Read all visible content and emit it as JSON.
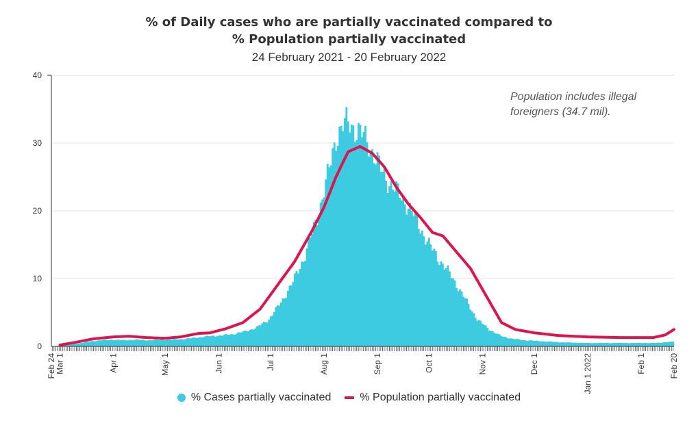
{
  "chart_data": {
    "type": "bar+line",
    "title_line1": "% of Daily cases who are partially vaccinated compared to",
    "title_line2": "% Population partially vaccinated",
    "subtitle": "24 February 2021 - 20 February 2022",
    "annotation": "Population includes illegal foreigners (34.7 mil).",
    "x_start": "2021-02-24",
    "x_end": "2022-02-20",
    "ylim": [
      0,
      40
    ],
    "yticks": [
      "0",
      "10",
      "20",
      "30",
      "40"
    ],
    "xticks": [
      {
        "date": "2021-02-24",
        "label": "Feb 24"
      },
      {
        "date": "2021-03-01",
        "label": "Mar 1"
      },
      {
        "date": "2021-04-01",
        "label": "Apr 1"
      },
      {
        "date": "2021-05-01",
        "label": "May 1"
      },
      {
        "date": "2021-06-01",
        "label": "Jun 1"
      },
      {
        "date": "2021-07-01",
        "label": "Jul 1"
      },
      {
        "date": "2021-08-01",
        "label": "Aug 1"
      },
      {
        "date": "2021-09-01",
        "label": "Sep 1"
      },
      {
        "date": "2021-10-01",
        "label": "Oct 1"
      },
      {
        "date": "2021-11-01",
        "label": "Nov 1"
      },
      {
        "date": "2021-12-01",
        "label": "Dec 1"
      },
      {
        "date": "2022-01-01",
        "label": "Jan 1 2022"
      },
      {
        "date": "2022-02-01",
        "label": "Feb 1"
      },
      {
        "date": "2022-02-20",
        "label": "Feb 20"
      }
    ],
    "grid": "horizontal",
    "legend_position": "bottom",
    "series": [
      {
        "name": "% Cases partially vaccinated",
        "kind": "bar",
        "color": "#3ccbe0",
        "points": [
          [
            "2021-02-24",
            0.0
          ],
          [
            "2021-03-03",
            0.2
          ],
          [
            "2021-03-10",
            0.4
          ],
          [
            "2021-03-17",
            0.7
          ],
          [
            "2021-03-24",
            0.9
          ],
          [
            "2021-03-31",
            1.0
          ],
          [
            "2021-04-07",
            0.9
          ],
          [
            "2021-04-14",
            1.0
          ],
          [
            "2021-04-21",
            0.9
          ],
          [
            "2021-04-28",
            1.0
          ],
          [
            "2021-05-05",
            1.0
          ],
          [
            "2021-05-12",
            1.1
          ],
          [
            "2021-05-19",
            1.3
          ],
          [
            "2021-05-26",
            1.5
          ],
          [
            "2021-06-02",
            1.6
          ],
          [
            "2021-06-09",
            1.8
          ],
          [
            "2021-06-16",
            2.2
          ],
          [
            "2021-06-23",
            2.8
          ],
          [
            "2021-06-30",
            4.0
          ],
          [
            "2021-07-07",
            6.5
          ],
          [
            "2021-07-14",
            9.5
          ],
          [
            "2021-07-21",
            13.5
          ],
          [
            "2021-07-28",
            19.0
          ],
          [
            "2021-08-04",
            26.0
          ],
          [
            "2021-08-08",
            31.0
          ],
          [
            "2021-08-12",
            32.5
          ],
          [
            "2021-08-16",
            33.0
          ],
          [
            "2021-08-20",
            32.0
          ],
          [
            "2021-08-27",
            30.0
          ],
          [
            "2021-09-03",
            26.0
          ],
          [
            "2021-09-10",
            23.5
          ],
          [
            "2021-09-17",
            21.5
          ],
          [
            "2021-09-24",
            18.5
          ],
          [
            "2021-10-01",
            15.0
          ],
          [
            "2021-10-08",
            12.5
          ],
          [
            "2021-10-15",
            10.0
          ],
          [
            "2021-10-22",
            7.0
          ],
          [
            "2021-10-29",
            4.0
          ],
          [
            "2021-11-05",
            2.5
          ],
          [
            "2021-11-12",
            1.5
          ],
          [
            "2021-11-19",
            1.1
          ],
          [
            "2021-11-26",
            0.9
          ],
          [
            "2021-12-03",
            0.8
          ],
          [
            "2021-12-17",
            0.6
          ],
          [
            "2022-01-01",
            0.5
          ],
          [
            "2022-01-15",
            0.5
          ],
          [
            "2022-02-01",
            0.5
          ],
          [
            "2022-02-10",
            0.5
          ],
          [
            "2022-02-20",
            0.7
          ]
        ]
      },
      {
        "name": "% Population partially vaccinated",
        "kind": "line",
        "color": "#e0144c",
        "points": [
          [
            "2021-03-01",
            0.2
          ],
          [
            "2021-03-10",
            0.6
          ],
          [
            "2021-03-20",
            1.1
          ],
          [
            "2021-04-01",
            1.4
          ],
          [
            "2021-04-10",
            1.5
          ],
          [
            "2021-04-20",
            1.3
          ],
          [
            "2021-05-01",
            1.2
          ],
          [
            "2021-05-10",
            1.4
          ],
          [
            "2021-05-20",
            1.9
          ],
          [
            "2021-05-27",
            2.0
          ],
          [
            "2021-06-05",
            2.6
          ],
          [
            "2021-06-15",
            3.5
          ],
          [
            "2021-06-25",
            5.5
          ],
          [
            "2021-07-05",
            9.0
          ],
          [
            "2021-07-15",
            12.5
          ],
          [
            "2021-07-25",
            17.0
          ],
          [
            "2021-08-01",
            20.5
          ],
          [
            "2021-08-08",
            25.0
          ],
          [
            "2021-08-15",
            28.7
          ],
          [
            "2021-08-22",
            29.5
          ],
          [
            "2021-08-29",
            28.5
          ],
          [
            "2021-09-05",
            26.5
          ],
          [
            "2021-09-12",
            23.5
          ],
          [
            "2021-09-19",
            21.0
          ],
          [
            "2021-09-26",
            19.0
          ],
          [
            "2021-10-03",
            16.8
          ],
          [
            "2021-10-09",
            16.3
          ],
          [
            "2021-10-15",
            14.5
          ],
          [
            "2021-10-25",
            11.5
          ],
          [
            "2021-11-03",
            7.5
          ],
          [
            "2021-11-12",
            3.5
          ],
          [
            "2021-11-20",
            2.5
          ],
          [
            "2021-12-01",
            2.0
          ],
          [
            "2021-12-15",
            1.6
          ],
          [
            "2022-01-01",
            1.4
          ],
          [
            "2022-01-20",
            1.3
          ],
          [
            "2022-02-08",
            1.3
          ],
          [
            "2022-02-15",
            1.7
          ],
          [
            "2022-02-20",
            2.5
          ]
        ]
      }
    ]
  }
}
